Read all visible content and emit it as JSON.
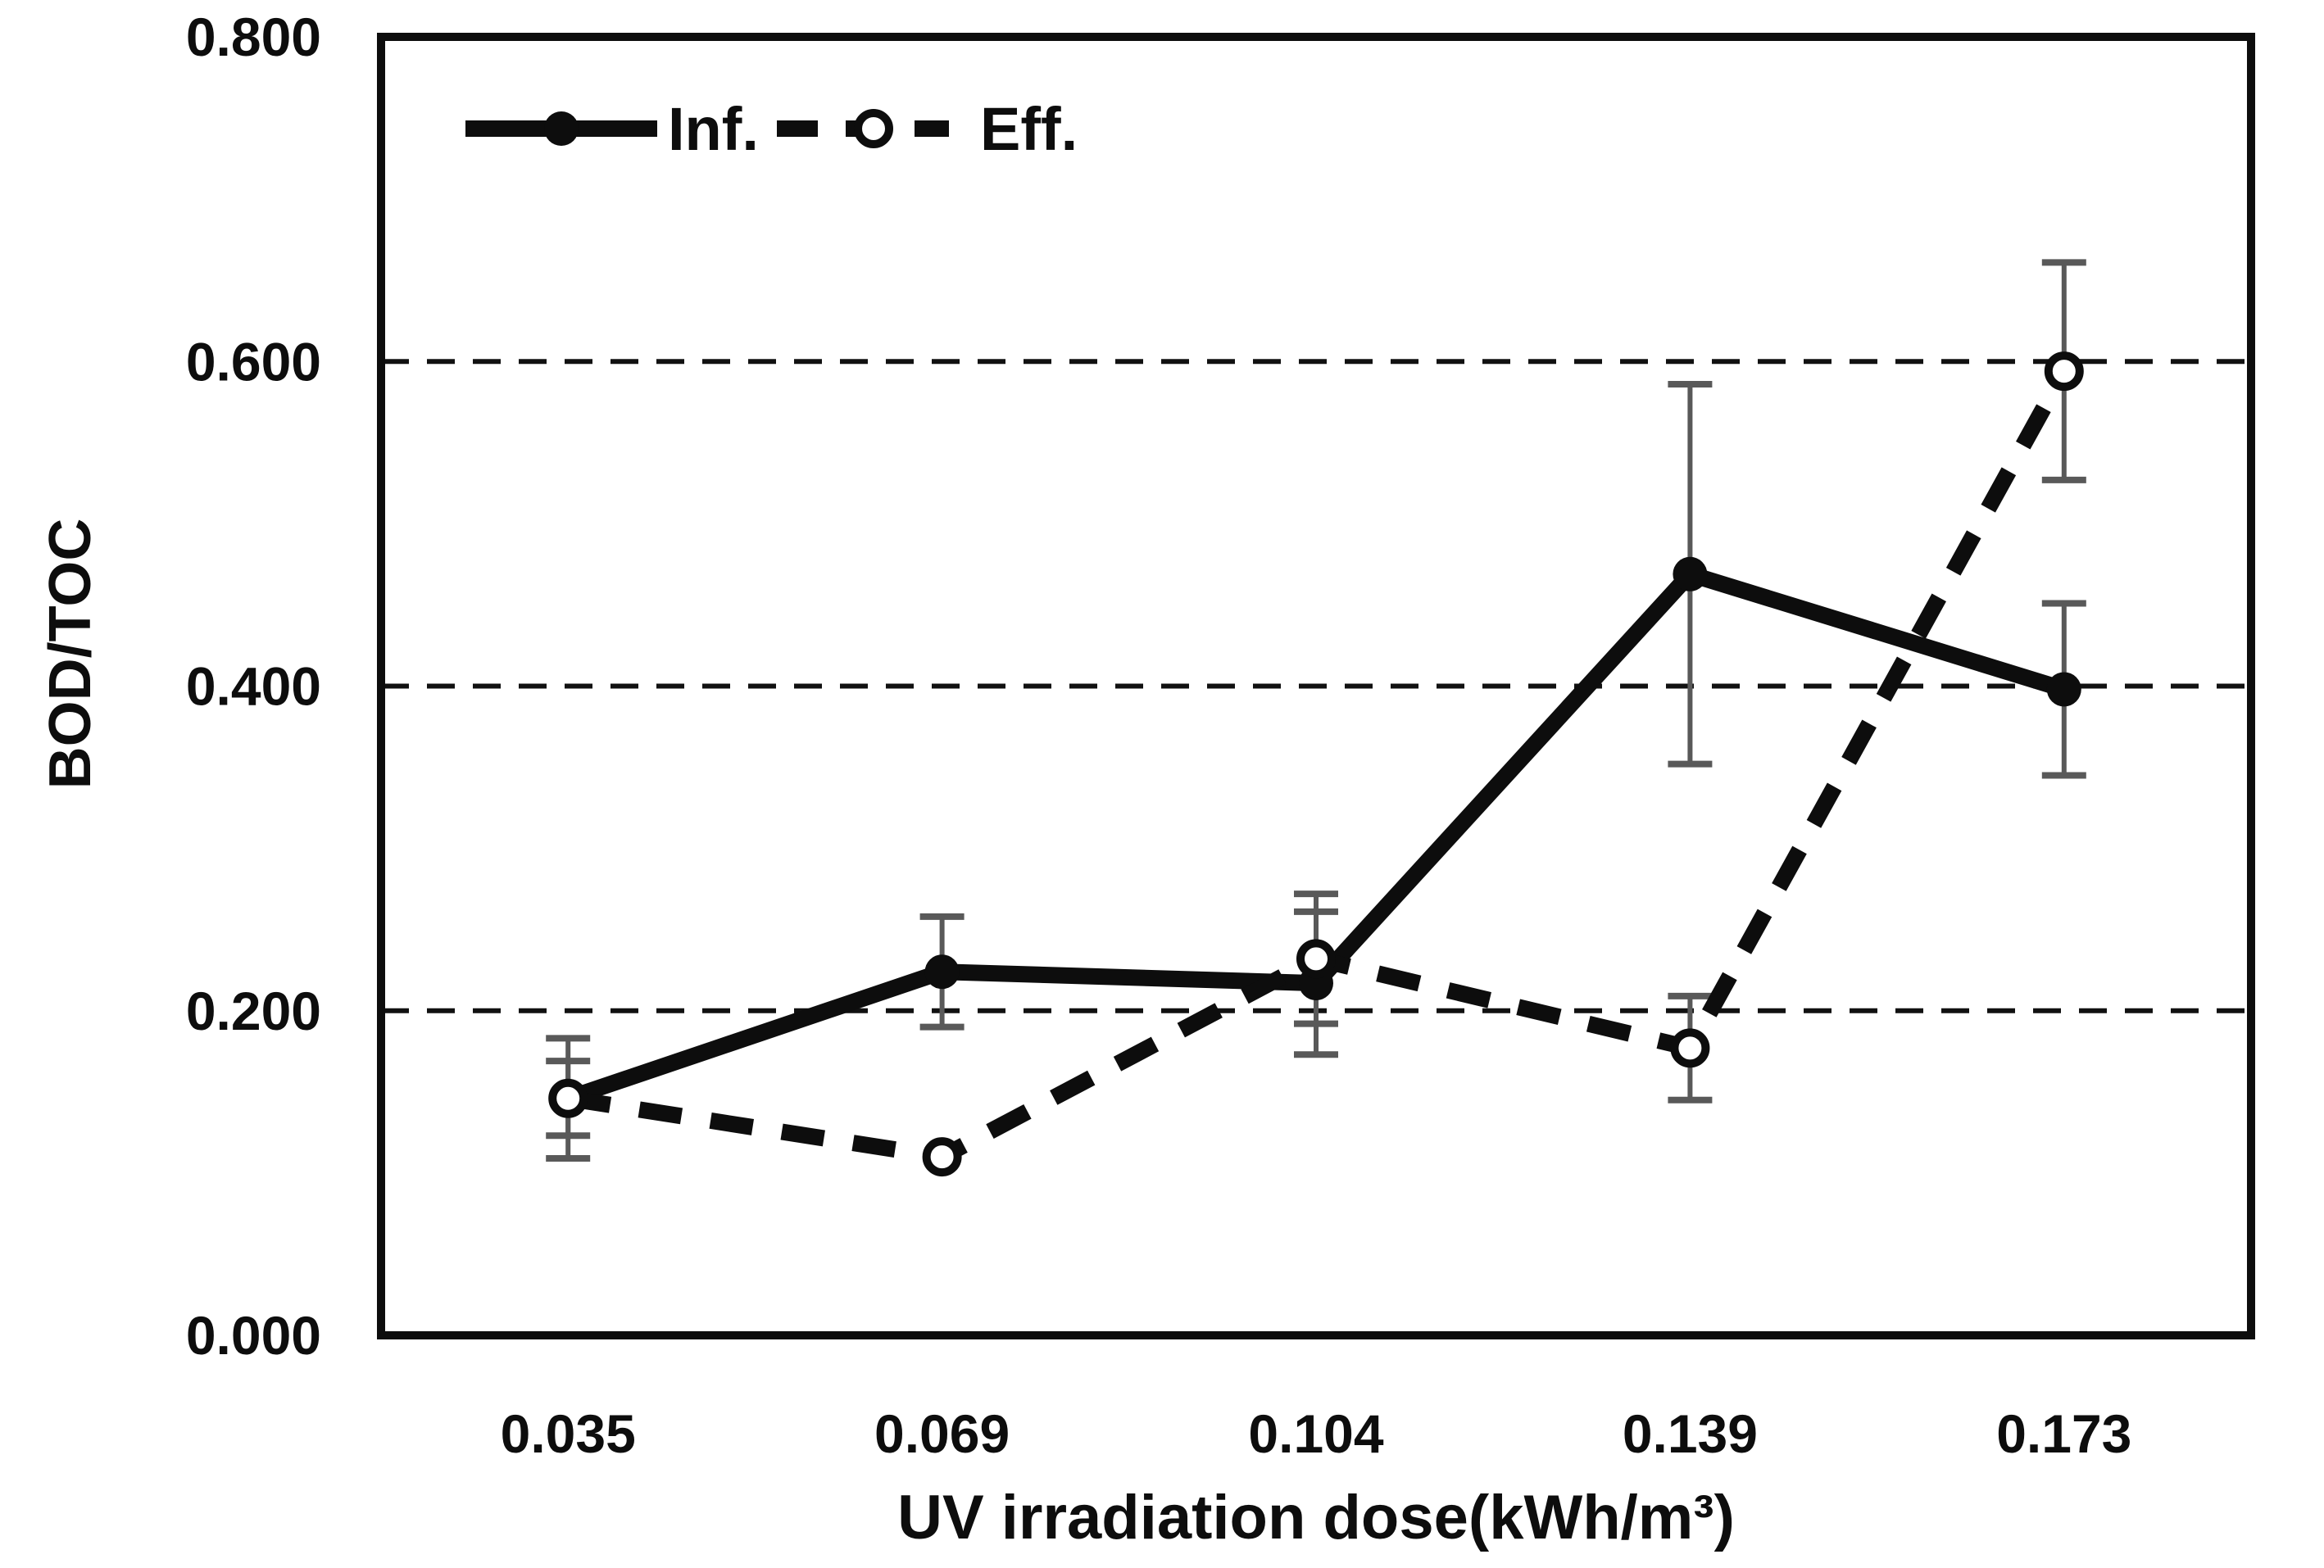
{
  "chart_data": {
    "type": "line",
    "title": "",
    "xlabel": "UV irradiation dose(kWh/m³)",
    "ylabel": "BOD/TOC",
    "categories": [
      "0.035",
      "0.069",
      "0.104",
      "0.139",
      "0.173"
    ],
    "series": [
      {
        "name": "Inf.",
        "line_style": "solid",
        "marker": "filled-circle",
        "values": [
          0.146,
          0.224,
          0.217,
          0.469,
          0.398
        ],
        "errors": [
          0.037,
          0.034,
          0.044,
          0.117,
          0.053
        ]
      },
      {
        "name": "Eff.",
        "line_style": "dashed",
        "marker": "open-circle",
        "values": [
          0.146,
          0.11,
          0.232,
          0.177,
          0.594
        ],
        "errors": [
          0.023,
          0,
          0.04,
          0.032,
          0.067
        ]
      }
    ],
    "ylim": [
      0,
      0.8
    ],
    "ytick_labels": [
      "0.000",
      "0.200",
      "0.400",
      "0.600",
      "0.800"
    ],
    "grid_values": [
      0.2,
      0.4,
      0.6
    ],
    "grid_style": "dashed",
    "legend_position": "top-left-inside",
    "colors": {
      "series": "#0d0d0d",
      "error_bars": "#595959",
      "background": "#ffffff"
    }
  }
}
